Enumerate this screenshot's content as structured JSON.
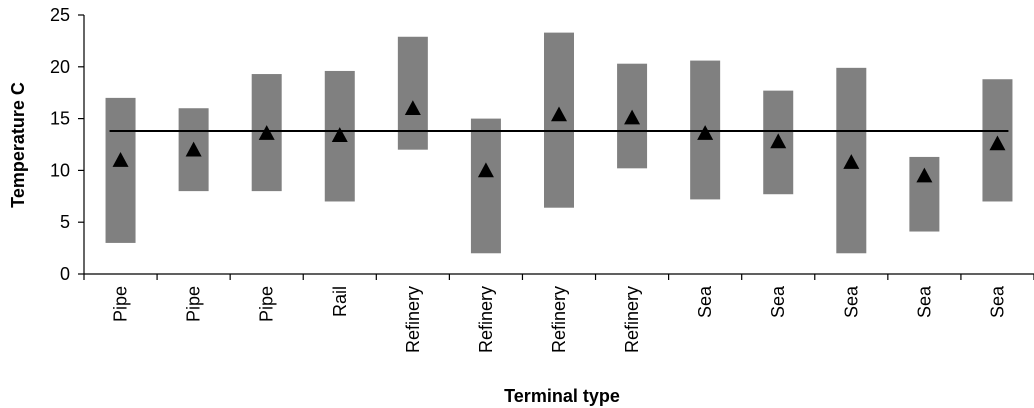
{
  "chart_data": {
    "type": "range-bar",
    "title": "",
    "xlabel": "Terminal type",
    "ylabel": "Temperature C",
    "ylim": [
      0,
      25
    ],
    "yticks": [
      0,
      5,
      10,
      15,
      20,
      25
    ],
    "grid": false,
    "legend": "none",
    "categories": [
      "Pipe",
      "Pipe",
      "Pipe",
      "Rail",
      "Refinery",
      "Refinery",
      "Refinery",
      "Refinery",
      "Sea",
      "Sea",
      "Sea",
      "Sea",
      "Sea"
    ],
    "series": [
      {
        "values": [
          3.0,
          8.0,
          8.0,
          7.0,
          12.0,
          2.0,
          6.4,
          10.2,
          7.2,
          7.7,
          2.0,
          4.1,
          7.0
        ]
      },
      {
        "values": [
          17.0,
          16.0,
          19.3,
          19.6,
          22.9,
          15.0,
          23.3,
          20.3,
          20.6,
          17.7,
          19.9,
          11.3,
          18.8
        ]
      },
      {
        "values": [
          11.0,
          12.0,
          13.6,
          13.4,
          16.0,
          10.0,
          15.4,
          15.1,
          13.6,
          12.8,
          10.8,
          9.5,
          12.6
        ]
      }
    ],
    "reference_line": {
      "value": 13.8
    },
    "colors": {
      "range": "#808080",
      "marker": "#000000",
      "line": "#000000",
      "axis": "#000000"
    }
  }
}
